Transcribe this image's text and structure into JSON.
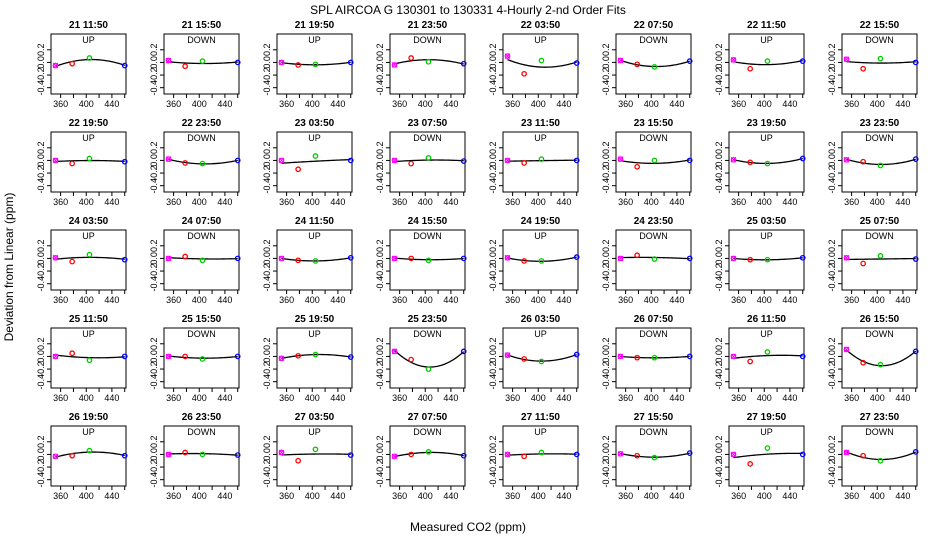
{
  "title": "SPL   AIRCOA G   130301 to 130331   4-Hourly 2-nd Order Fits",
  "xlabel": "Measured CO2 (ppm)",
  "ylabel": "Deviation from Linear (ppm)",
  "colors": {
    "fit_line": "#000000",
    "std_low": "#ff00ff",
    "std_2": "#ff0000",
    "std_3": "#00cc00",
    "std_high": "#0000ff"
  },
  "chart_data": {
    "type": "scatter",
    "layout": "5 rows x 8 columns of small panels",
    "xlim": [
      345,
      462
    ],
    "ylim": [
      -0.5,
      0.45
    ],
    "x_ticks": [
      "360",
      "400",
      "440"
    ],
    "x_minor_ticks": [
      380,
      420,
      460
    ],
    "y_ticks": [
      "-0.4",
      "-0.2",
      "0.0",
      "0.2"
    ],
    "x": [
      352,
      378,
      405,
      460
    ],
    "series_colors": [
      "#ff00ff",
      "#ff0000",
      "#00cc00",
      "#0000ff"
    ],
    "panels": [
      {
        "title": "21 11:50",
        "mode": "UP",
        "y": [
          -0.05,
          -0.02,
          0.07,
          -0.05
        ]
      },
      {
        "title": "21 15:50",
        "mode": "DOWN",
        "y": [
          0.03,
          -0.06,
          0.02,
          0.0
        ]
      },
      {
        "title": "21 19:50",
        "mode": "UP",
        "y": [
          0.0,
          -0.04,
          -0.03,
          0.0
        ]
      },
      {
        "title": "21 23:50",
        "mode": "DOWN",
        "y": [
          -0.04,
          0.07,
          0.01,
          -0.02
        ]
      },
      {
        "title": "22 03:50",
        "mode": "UP",
        "y": [
          0.1,
          -0.18,
          0.03,
          -0.01
        ]
      },
      {
        "title": "22 07:50",
        "mode": "DOWN",
        "y": [
          0.03,
          -0.03,
          -0.07,
          0.02
        ]
      },
      {
        "title": "22 11:50",
        "mode": "UP",
        "y": [
          0.04,
          -0.1,
          0.02,
          0.02
        ]
      },
      {
        "title": "22 15:50",
        "mode": "DOWN",
        "y": [
          0.05,
          -0.1,
          0.06,
          0.0
        ]
      },
      {
        "title": "22 19:50",
        "mode": "UP",
        "y": [
          0.0,
          -0.05,
          0.03,
          -0.02
        ]
      },
      {
        "title": "22 23:50",
        "mode": "DOWN",
        "y": [
          0.02,
          -0.04,
          -0.05,
          0.0
        ]
      },
      {
        "title": "23 03:50",
        "mode": "UP",
        "y": [
          0.0,
          -0.14,
          0.07,
          0.0
        ]
      },
      {
        "title": "23 07:50",
        "mode": "DOWN",
        "y": [
          0.0,
          -0.05,
          0.04,
          -0.01
        ]
      },
      {
        "title": "23 11:50",
        "mode": "UP",
        "y": [
          0.0,
          -0.04,
          0.02,
          0.0
        ]
      },
      {
        "title": "23 15:50",
        "mode": "DOWN",
        "y": [
          0.02,
          -0.1,
          0.0,
          0.0
        ]
      },
      {
        "title": "23 19:50",
        "mode": "UP",
        "y": [
          0.01,
          -0.03,
          -0.05,
          0.03
        ]
      },
      {
        "title": "23 23:50",
        "mode": "DOWN",
        "y": [
          0.01,
          -0.02,
          -0.08,
          0.02
        ]
      },
      {
        "title": "24 03:50",
        "mode": "UP",
        "y": [
          0.01,
          -0.05,
          0.06,
          -0.02
        ]
      },
      {
        "title": "24 07:50",
        "mode": "DOWN",
        "y": [
          0.0,
          0.03,
          -0.03,
          0.0
        ]
      },
      {
        "title": "24 11:50",
        "mode": "UP",
        "y": [
          0.0,
          -0.03,
          -0.04,
          0.01
        ]
      },
      {
        "title": "24 15:50",
        "mode": "DOWN",
        "y": [
          0.0,
          0.0,
          -0.03,
          0.0
        ]
      },
      {
        "title": "24 19:50",
        "mode": "UP",
        "y": [
          0.01,
          -0.04,
          -0.04,
          0.02
        ]
      },
      {
        "title": "24 23:50",
        "mode": "DOWN",
        "y": [
          0.0,
          0.05,
          -0.01,
          0.0
        ]
      },
      {
        "title": "25 03:50",
        "mode": "UP",
        "y": [
          0.0,
          -0.02,
          -0.02,
          0.01
        ]
      },
      {
        "title": "25 07:50",
        "mode": "DOWN",
        "y": [
          0.01,
          -0.08,
          0.04,
          -0.01
        ]
      },
      {
        "title": "25 11:50",
        "mode": "UP",
        "y": [
          0.0,
          0.05,
          -0.06,
          0.0
        ]
      },
      {
        "title": "25 15:50",
        "mode": "DOWN",
        "y": [
          0.0,
          0.0,
          -0.04,
          0.0
        ]
      },
      {
        "title": "25 19:50",
        "mode": "UP",
        "y": [
          -0.03,
          0.01,
          0.03,
          -0.01
        ]
      },
      {
        "title": "25 23:50",
        "mode": "DOWN",
        "y": [
          0.08,
          -0.05,
          -0.2,
          0.08
        ]
      },
      {
        "title": "26 03:50",
        "mode": "UP",
        "y": [
          0.02,
          -0.04,
          -0.08,
          0.03
        ]
      },
      {
        "title": "26 07:50",
        "mode": "DOWN",
        "y": [
          0.0,
          -0.02,
          -0.02,
          0.0
        ]
      },
      {
        "title": "26 11:50",
        "mode": "UP",
        "y": [
          0.0,
          -0.08,
          0.07,
          0.0
        ]
      },
      {
        "title": "26 15:50",
        "mode": "DOWN",
        "y": [
          0.11,
          -0.1,
          -0.13,
          0.08
        ]
      },
      {
        "title": "26 19:50",
        "mode": "UP",
        "y": [
          -0.03,
          -0.02,
          0.06,
          -0.02
        ]
      },
      {
        "title": "26 23:50",
        "mode": "DOWN",
        "y": [
          0.0,
          0.03,
          0.0,
          -0.01
        ]
      },
      {
        "title": "27 03:50",
        "mode": "UP",
        "y": [
          0.03,
          -0.1,
          0.08,
          -0.01
        ]
      },
      {
        "title": "27 07:50",
        "mode": "DOWN",
        "y": [
          -0.03,
          0.0,
          0.04,
          -0.02
        ]
      },
      {
        "title": "27 11:50",
        "mode": "UP",
        "y": [
          0.0,
          -0.03,
          0.03,
          0.0
        ]
      },
      {
        "title": "27 15:50",
        "mode": "DOWN",
        "y": [
          0.01,
          -0.02,
          -0.05,
          0.02
        ]
      },
      {
        "title": "27 19:50",
        "mode": "UP",
        "y": [
          0.0,
          -0.15,
          0.1,
          0.0
        ]
      },
      {
        "title": "27 23:50",
        "mode": "DOWN",
        "y": [
          0.03,
          -0.02,
          -0.1,
          0.04
        ]
      }
    ]
  }
}
